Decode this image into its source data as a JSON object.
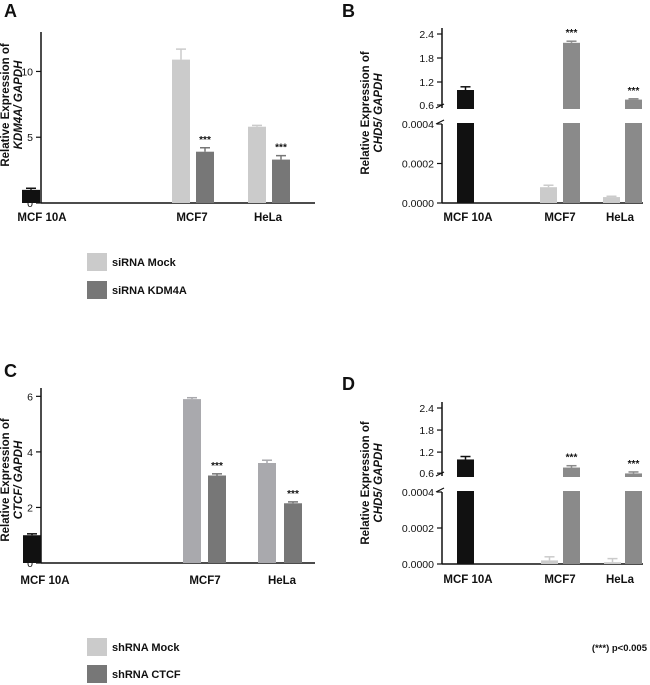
{
  "colors": {
    "black": "#111111",
    "mock": "#cbcbcb",
    "mock_c": "#a9a9ad",
    "knockdown": "#777777",
    "knockdown_right": "#8a8a8a",
    "axis": "#111111"
  },
  "legend_top": {
    "items": [
      {
        "label": "siRNA Mock",
        "color_key": "mock"
      },
      {
        "label": "siRNA KDM4A",
        "color_key": "knockdown"
      }
    ]
  },
  "legend_bottom": {
    "items": [
      {
        "label": "shRNA Mock",
        "color_key": "mock"
      },
      {
        "label": "shRNA CTCF",
        "color_key": "knockdown"
      }
    ]
  },
  "footnote": "(***) p<0.005",
  "chart_data": [
    {
      "panel": "A",
      "type": "bar",
      "ylabel_line1": "Relative Expression of",
      "ylabel_line2": "KDM4A/ GAPDH",
      "categories": [
        "MCF 10A",
        "MCF7",
        "HeLa"
      ],
      "yticks": [
        "0",
        "5",
        "10"
      ],
      "ylim": [
        0,
        13
      ],
      "series": [
        {
          "name": "control",
          "values": [
            1.0,
            null,
            null
          ],
          "errors": [
            0.12,
            null,
            null
          ]
        },
        {
          "name": "siRNA Mock",
          "values": [
            null,
            10.9,
            5.8
          ],
          "errors": [
            null,
            0.8,
            0.1
          ]
        },
        {
          "name": "siRNA KDM4A",
          "values": [
            null,
            3.9,
            3.3
          ],
          "errors": [
            null,
            0.3,
            0.3
          ]
        }
      ],
      "significance": [
        "",
        "***",
        "***"
      ]
    },
    {
      "panel": "B",
      "type": "bar",
      "ylabel_line1": "Relative Expression of",
      "ylabel_line2": "CHD5/ GAPDH",
      "categories": [
        "MCF 10A",
        "MCF7",
        "HeLa"
      ],
      "yticks_lower": [
        "0.0000",
        "0.0002",
        "0.0004"
      ],
      "yticks_upper": [
        "0.6",
        "1.2",
        "1.8",
        "2.4"
      ],
      "broken_axis": {
        "lower_range": [
          0,
          0.0004
        ],
        "upper_range": [
          0.55,
          2.4
        ]
      },
      "series": [
        {
          "name": "control",
          "values": [
            1.0,
            null,
            null
          ],
          "errors": [
            0.08,
            null,
            null
          ]
        },
        {
          "name": "siRNA Mock",
          "values": [
            null,
            8e-05,
            3e-05
          ],
          "errors": [
            null,
            1e-05,
            4e-06
          ]
        },
        {
          "name": "siRNA KDM4A",
          "values": [
            null,
            2.18,
            0.76
          ],
          "errors": [
            null,
            0.04,
            0.02
          ]
        }
      ],
      "significance": [
        "",
        "***",
        "***"
      ]
    },
    {
      "panel": "C",
      "type": "bar",
      "ylabel_line1": "Relative Expression of",
      "ylabel_line2": "CTCF/ GAPDH",
      "categories": [
        "MCF 10A",
        "MCF7",
        "HeLa"
      ],
      "yticks": [
        "0",
        "2",
        "4",
        "6"
      ],
      "ylim": [
        0,
        6.3
      ],
      "series": [
        {
          "name": "control",
          "values": [
            1.0,
            null,
            null
          ],
          "errors": [
            0.05,
            null,
            null
          ]
        },
        {
          "name": "shRNA Mock",
          "values": [
            null,
            5.9,
            3.6
          ],
          "errors": [
            null,
            0.05,
            0.1
          ]
        },
        {
          "name": "shRNA CTCF",
          "values": [
            null,
            3.15,
            2.15
          ],
          "errors": [
            null,
            0.06,
            0.05
          ]
        }
      ],
      "significance": [
        "",
        "***",
        "***"
      ]
    },
    {
      "panel": "D",
      "type": "bar",
      "ylabel_line1": "Relative Expression of",
      "ylabel_line2": "CHD5/ GAPDH",
      "categories": [
        "MCF 10A",
        "MCF7",
        "HeLa"
      ],
      "yticks_lower": [
        "0.0000",
        "0.0002",
        "0.0004"
      ],
      "yticks_upper": [
        "0.6",
        "1.2",
        "1.8",
        "2.4"
      ],
      "broken_axis": {
        "lower_range": [
          0,
          0.0004
        ],
        "upper_range": [
          0.55,
          2.4
        ]
      },
      "series": [
        {
          "name": "control",
          "values": [
            1.0,
            null,
            null
          ],
          "errors": [
            0.08,
            null,
            null
          ]
        },
        {
          "name": "shRNA Mock",
          "values": [
            null,
            2e-05,
            1e-05
          ],
          "errors": [
            null,
            2e-05,
            2e-05
          ]
        },
        {
          "name": "shRNA CTCF",
          "values": [
            null,
            0.78,
            0.62
          ],
          "errors": [
            null,
            0.05,
            0.04
          ]
        }
      ],
      "significance": [
        "",
        "***",
        "***"
      ]
    }
  ]
}
